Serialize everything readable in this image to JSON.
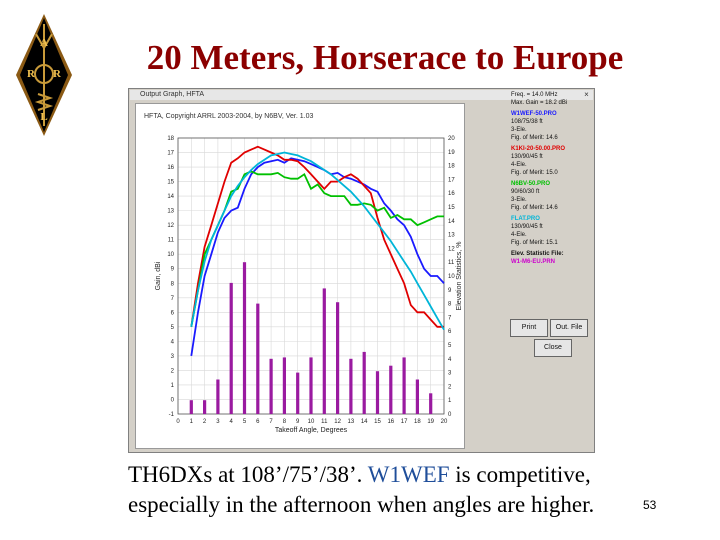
{
  "slide": {
    "title": "20 Meters, Horserace to Europe",
    "caption_line1_a": "TH6DXs at 108’/75’/38’. ",
    "caption_line1_b": "W1WEF",
    "caption_line1_c": " is competitive,",
    "caption_line2": "especially in the afternoon when angles are higher.",
    "page_number": "53",
    "logo_letters": [
      "A",
      "R",
      "R",
      "L"
    ]
  },
  "window": {
    "title": "Output Graph, HFTA",
    "close_glyph": "×",
    "copyright": "HFTA, Copyright ARRL 2003-2004, by N6BV, Ver. 1.03",
    "info": {
      "freq": "Freq. = 14.0 MHz",
      "max_gain": "Max. Gain = 18.2 dBi",
      "entries": [
        {
          "file": "W1WEF-50.PRO",
          "desc": "108/75/38 ft",
          "ele": "3-Ele.",
          "fom": "Fig. of Merit: 14.6",
          "color": "#1a1aff"
        },
        {
          "file": "K1KI-20-50.00.PRO",
          "desc": "130/90/45 ft",
          "ele": "4-Ele.",
          "fom": "Fig. of Merit: 15.0",
          "color": "#e00000"
        },
        {
          "file": "N6BV-50.PRO",
          "desc": "90/60/30 ft",
          "ele": "3-Ele.",
          "fom": "Fig. of Merit: 14.6",
          "color": "#00c000"
        },
        {
          "file": "FLAT.PRO",
          "desc": "130/90/45 ft",
          "ele": "4-Ele.",
          "fom": "Fig. of Merit: 15.1",
          "color": "#00b5d8"
        }
      ],
      "elev_label": "Elev. Statistic File:",
      "elev_file": "W1-M6-EU.PRN",
      "elev_color": "#cc00cc"
    },
    "buttons": {
      "print": "Print",
      "out_file": "Out. File",
      "close": "Close"
    }
  },
  "chart_data": {
    "type": "line",
    "xlabel": "Takeoff Angle, Degrees",
    "ylabel": "Gain, dBi",
    "y2label": "Elevation Statistics, %",
    "xlim": [
      0,
      20
    ],
    "ylim": [
      -1,
      18
    ],
    "y2lim": [
      0,
      20
    ],
    "x_ticks": [
      0,
      1,
      2,
      3,
      4,
      5,
      6,
      7,
      8,
      9,
      10,
      11,
      12,
      13,
      14,
      15,
      16,
      17,
      18,
      19,
      20
    ],
    "y_ticks": [
      -1,
      0,
      1,
      2,
      3,
      4,
      5,
      6,
      7,
      8,
      9,
      10,
      11,
      12,
      13,
      14,
      15,
      16,
      17,
      18
    ],
    "y2_ticks": [
      0,
      1,
      2,
      3,
      4,
      5,
      6,
      7,
      8,
      9,
      10,
      11,
      12,
      13,
      14,
      15,
      16,
      17,
      18,
      19,
      20
    ],
    "grid": true,
    "series": [
      {
        "name": "W1WEF-50.PRO",
        "color": "#1a1aff",
        "x": [
          1,
          1.5,
          2,
          2.5,
          3,
          3.5,
          4,
          4.5,
          5,
          5.5,
          6,
          6.5,
          7,
          7.5,
          8,
          8.5,
          9,
          9.5,
          10,
          10.5,
          11,
          11.5,
          12,
          12.5,
          13,
          13.5,
          14,
          14.5,
          15,
          15.5,
          16,
          16.5,
          17,
          17.5,
          18,
          18.5,
          19,
          19.5,
          20
        ],
        "y": [
          3,
          6,
          8.5,
          10,
          11.5,
          12.5,
          13,
          13.2,
          14.5,
          15.5,
          16,
          16.3,
          16.4,
          16.5,
          16.3,
          16.6,
          16.5,
          16.4,
          16.2,
          16,
          15.8,
          15.5,
          15.6,
          15.3,
          15.2,
          15,
          14.8,
          14.5,
          14.3,
          13.5,
          13,
          12.4,
          12,
          11.2,
          10,
          9,
          8.5,
          8.5,
          8
        ]
      },
      {
        "name": "K1KI-20-50.00.PRO",
        "color": "#e00000",
        "x": [
          1,
          1.5,
          2,
          2.5,
          3,
          3.5,
          4,
          4.5,
          5,
          5.5,
          6,
          6.5,
          7,
          7.5,
          8,
          8.5,
          9,
          9.5,
          10,
          10.5,
          11,
          11.5,
          12,
          12.5,
          13,
          13.5,
          14,
          14.5,
          15,
          15.5,
          16,
          16.5,
          17,
          17.5,
          18,
          18.5,
          19,
          19.5,
          20
        ],
        "y": [
          5,
          8,
          10.5,
          12,
          13.5,
          15,
          16.3,
          16.6,
          17,
          17.2,
          17.4,
          17.2,
          17,
          16.8,
          16.5,
          16.5,
          16.4,
          16,
          15.5,
          15,
          14.5,
          15,
          15,
          15.3,
          15.5,
          15.2,
          14.7,
          14.2,
          12.5,
          11,
          10,
          9,
          8,
          6.5,
          6,
          6,
          5.5,
          5,
          5
        ]
      },
      {
        "name": "N6BV-50.PRO",
        "color": "#00c000",
        "x": [
          1,
          1.5,
          2,
          2.5,
          3,
          3.5,
          4,
          4.5,
          5,
          5.5,
          6,
          6.5,
          7,
          7.5,
          8,
          8.5,
          9,
          9.5,
          10,
          10.5,
          11,
          11.5,
          12,
          12.5,
          13,
          13.5,
          14,
          14.5,
          15,
          15.5,
          16,
          16.5,
          17,
          17.5,
          18,
          18.5,
          19,
          19.5,
          20
        ],
        "y": [
          5,
          7.5,
          10,
          11,
          12,
          13,
          14.3,
          14.5,
          15.5,
          15.7,
          15.5,
          15.5,
          15.5,
          15.6,
          15.3,
          15.2,
          15.2,
          15.5,
          14.5,
          14.8,
          14.2,
          14,
          14,
          14,
          13.4,
          13.4,
          13.5,
          13.4,
          13,
          13.2,
          12.5,
          12.7,
          12.4,
          12.4,
          12,
          12.2,
          12.4,
          12.6,
          12.6
        ]
      },
      {
        "name": "FLAT.PRO",
        "color": "#00b5d8",
        "x": [
          1,
          1.5,
          2,
          2.5,
          3,
          3.5,
          4,
          4.5,
          5,
          5.5,
          6,
          6.5,
          7,
          7.5,
          8,
          8.5,
          9,
          9.5,
          10,
          10.5,
          11,
          11.5,
          12,
          12.5,
          13,
          13.5,
          14,
          14.5,
          15,
          15.5,
          16,
          16.5,
          17,
          17.5,
          18,
          18.5,
          19,
          19.5,
          20
        ],
        "y": [
          5,
          7.5,
          9.5,
          11,
          12,
          13,
          14,
          14.7,
          15.3,
          15.8,
          16.2,
          16.5,
          16.8,
          16.9,
          17,
          16.9,
          16.8,
          16.6,
          16.4,
          16.1,
          15.8,
          15.5,
          15.1,
          14.7,
          14.3,
          13.8,
          13.3,
          12.7,
          12.1,
          11.5,
          10.9,
          10.2,
          9.5,
          8.8,
          8,
          7.2,
          6.4,
          5.6,
          4.8
        ]
      }
    ],
    "bars": {
      "name": "W1-M6-EU.PRN",
      "color": "#9a1aa0",
      "axis": "y2",
      "x": [
        1,
        2,
        3,
        4,
        5,
        6,
        7,
        8,
        9,
        10,
        11,
        12,
        13,
        14,
        15,
        16,
        17,
        18,
        19
      ],
      "values": [
        1,
        1,
        2.5,
        9.5,
        11,
        8,
        4,
        4.1,
        3,
        4.1,
        9.1,
        8.1,
        4,
        4.5,
        3.1,
        3.5,
        4.1,
        2.5,
        1.5
      ]
    }
  }
}
